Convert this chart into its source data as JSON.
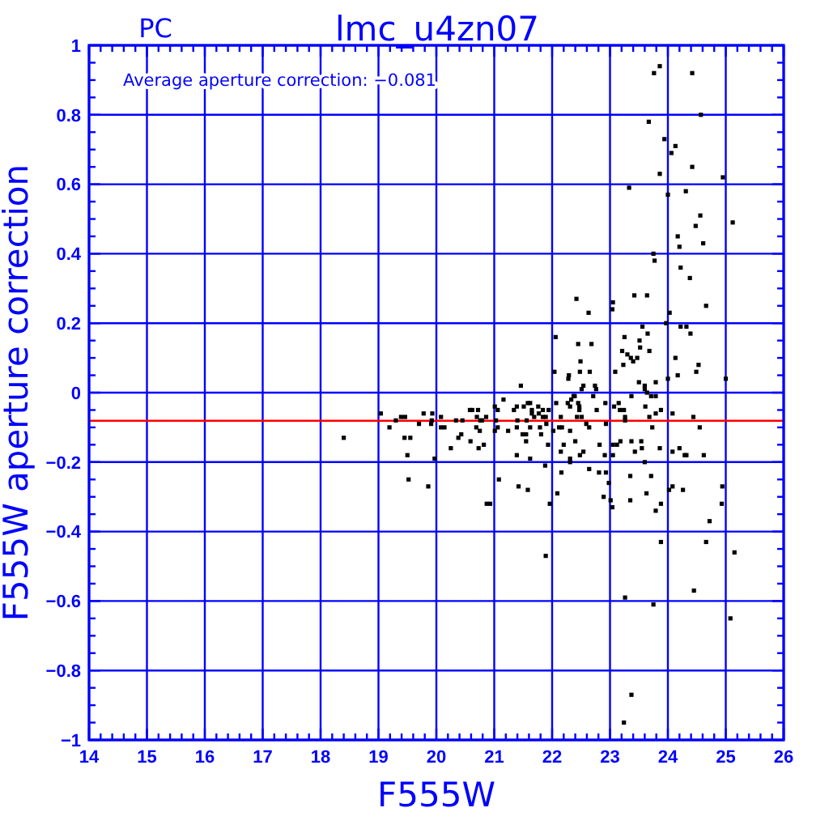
{
  "chart_data": {
    "type": "scatter",
    "title": "lmc_u4zn07",
    "subtitle": "PC",
    "xlabel": "F555W",
    "ylabel": "F555W aperture correction",
    "annotations": [
      "Average aperture correction: −0.081"
    ],
    "xlim": [
      14,
      26
    ],
    "ylim": [
      -1,
      1
    ],
    "xticks": [
      14,
      {
        "value": 14.2,
        "label": null
      },
      {
        "value": 14.4,
        "label": null
      },
      {
        "value": 14.6,
        "label": null
      },
      {
        "value": 14.8,
        "label": null
      },
      15,
      {
        "value": 15.2,
        "label": null
      },
      {
        "value": 15.4,
        "label": null
      },
      {
        "value": 15.6,
        "label": null
      },
      {
        "value": 15.8,
        "label": null
      },
      16,
      {
        "value": 16.2,
        "label": null
      },
      {
        "value": 16.4,
        "label": null
      },
      {
        "value": 16.6,
        "label": null
      },
      {
        "value": 16.8,
        "label": null
      },
      17,
      {
        "value": 17.2,
        "label": null
      },
      {
        "value": 17.4,
        "label": null
      },
      {
        "value": 17.6,
        "label": null
      },
      {
        "value": 17.8,
        "label": null
      },
      18,
      {
        "value": 18.2,
        "label": null
      },
      {
        "value": 18.4,
        "label": null
      },
      {
        "value": 18.6,
        "label": null
      },
      {
        "value": 18.8,
        "label": null
      },
      19,
      {
        "value": 19.2,
        "label": null
      },
      {
        "value": 19.4,
        "label": null
      },
      {
        "value": 19.6,
        "label": null
      },
      {
        "value": 19.8,
        "label": null
      },
      20,
      {
        "value": 20.2,
        "label": null
      },
      {
        "value": 20.4,
        "label": null
      },
      {
        "value": 20.6,
        "label": null
      },
      {
        "value": 20.8,
        "label": null
      },
      21,
      {
        "value": 21.2,
        "label": null
      },
      {
        "value": 21.4,
        "label": null
      },
      {
        "value": 21.6,
        "label": null
      },
      {
        "value": 21.8,
        "label": null
      },
      22,
      {
        "value": 22.2,
        "label": null
      },
      {
        "value": 22.4,
        "label": null
      },
      {
        "value": 22.6,
        "label": null
      },
      {
        "value": 22.8,
        "label": null
      },
      23,
      {
        "value": 23.2,
        "label": null
      },
      {
        "value": 23.4,
        "label": null
      },
      {
        "value": 23.6,
        "label": null
      },
      {
        "value": 23.8,
        "label": null
      },
      24,
      {
        "value": 24.2,
        "label": null
      },
      {
        "value": 24.4,
        "label": null
      },
      {
        "value": 24.6,
        "label": null
      },
      {
        "value": 24.8,
        "label": null
      },
      25,
      {
        "value": 25.2,
        "label": null
      },
      {
        "value": 25.4,
        "label": null
      },
      {
        "value": 25.6,
        "label": null
      },
      {
        "value": 25.8,
        "label": null
      },
      26
    ],
    "yticks": [
      -1,
      {
        "value": -0.95,
        "label": null
      },
      {
        "value": -0.9,
        "label": null
      },
      {
        "value": -0.85,
        "label": null
      },
      -0.8,
      {
        "value": -0.75,
        "label": null
      },
      {
        "value": -0.7,
        "label": null
      },
      {
        "value": -0.65,
        "label": null
      },
      -0.6,
      {
        "value": -0.55,
        "label": null
      },
      {
        "value": -0.5,
        "label": null
      },
      {
        "value": -0.45,
        "label": null
      },
      -0.4,
      {
        "value": -0.35,
        "label": null
      },
      {
        "value": -0.3,
        "label": null
      },
      {
        "value": -0.25,
        "label": null
      },
      -0.2,
      {
        "value": -0.15,
        "label": null
      },
      {
        "value": -0.1,
        "label": null
      },
      {
        "value": -0.05,
        "label": null
      },
      0,
      {
        "value": 0.05,
        "label": null
      },
      {
        "value": 0.1,
        "label": null
      },
      {
        "value": 0.15,
        "label": null
      },
      0.2,
      {
        "value": 0.25,
        "label": null
      },
      {
        "value": 0.3,
        "label": null
      },
      {
        "value": 0.35,
        "label": null
      },
      0.4,
      {
        "value": 0.45,
        "label": null
      },
      {
        "value": 0.5,
        "label": null
      },
      {
        "value": 0.55,
        "label": null
      },
      0.6,
      {
        "value": 0.65,
        "label": null
      },
      {
        "value": 0.7,
        "label": null
      },
      {
        "value": 0.75,
        "label": null
      },
      0.8,
      {
        "value": 0.85,
        "label": null
      },
      {
        "value": 0.9,
        "label": null
      },
      {
        "value": 0.95,
        "label": null
      },
      1
    ],
    "grid": true,
    "marker": "square",
    "color": "#000000",
    "ref_lines": [
      {
        "axis": "y",
        "value": -0.081,
        "color": "#ff0000"
      }
    ],
    "x": [
      18.4,
      19.04,
      19.19,
      19.3,
      19.39,
      19.46,
      19.45,
      19.55,
      19.5,
      19.52,
      19.7,
      19.78,
      19.86,
      19.93,
      19.91,
      19.92,
      19.97,
      20.08,
      20.08,
      20.14,
      20.25,
      20.34,
      20.38,
      20.43,
      20.45,
      20.58,
      20.62,
      20.59,
      20.69,
      20.72,
      20.7,
      20.73,
      20.76,
      20.75,
      20.82,
      20.79,
      20.86,
      20.87,
      20.93,
      21.01,
      21.03,
      21.06,
      21.06,
      21.01,
      21.08,
      21.16,
      21.24,
      21.34,
      21.39,
      21.39,
      21.4,
      21.39,
      21.42,
      21.46,
      21.49,
      21.51,
      21.55,
      21.55,
      21.56,
      21.58,
      21.62,
      21.62,
      21.65,
      21.65,
      21.62,
      21.58,
      21.69,
      21.76,
      21.77,
      21.79,
      21.81,
      21.84,
      21.84,
      21.89,
      21.94,
      21.9,
      21.88,
      21.93,
      21.96,
      22.02,
      22.06,
      22.04,
      22.07,
      22.09,
      22.12,
      22.15,
      22.15,
      22.16,
      22.17,
      22.2,
      21.89,
      22.45,
      22.68,
      22.49,
      22.48,
      22.65,
      22.29,
      22.28,
      22.54,
      22.51,
      22.74,
      22.76,
      22.37,
      22.39,
      22.33,
      22.27,
      22.31,
      22.45,
      22.47,
      22.47,
      22.71,
      22.92,
      22.77,
      22.43,
      22.51,
      22.59,
      22.64,
      22.93,
      22.31,
      22.4,
      22.48,
      22.54,
      22.31,
      22.31,
      22.82,
      22.91,
      23.05,
      23.05,
      22.64,
      22.81,
      22.93,
      22.98,
      22.89,
      23.01,
      23.04,
      23.07,
      23.15,
      23.17,
      23.24,
      23.26,
      23.26,
      23.09,
      23.23,
      23.21,
      23.3,
      23.36,
      23.4,
      23.47,
      23.25,
      23.52,
      23.56,
      23.65,
      23.68,
      23.51,
      23.5,
      23.6,
      23.64,
      23.6,
      23.79,
      23.37,
      23.61,
      23.71,
      23.79,
      23.88,
      23.68,
      23.79,
      24.0,
      24.13,
      24.17,
      24.22,
      24.32,
      24.39,
      24.08,
      24.44,
      24.53,
      24.49,
      24.55,
      25.0,
      23.12,
      23.18,
      23.37,
      23.43,
      23.54,
      23.55,
      23.6,
      23.73,
      23.86,
      24.08,
      24.2,
      24.29,
      24.32,
      24.62,
      23.35,
      23.71,
      23.63,
      23.35,
      23.79,
      23.88,
      24.02,
      24.08,
      24.26,
      24.94,
      24.93,
      24.72,
      23.88,
      24.66,
      25.15,
      23.26,
      23.75,
      24.45,
      25.08,
      23.37,
      23.24,
      23.86,
      23.76,
      24.42,
      24.57,
      23.67,
      23.94,
      24.13,
      24.06,
      24.42,
      23.86,
      24.95,
      23.33,
      24.0,
      24.31,
      24.56,
      24.48,
      25.12,
      24.17,
      24.2,
      24.61,
      23.75,
      23.77,
      24.22,
      24.38,
      22.42,
      22.63,
      23.05,
      23.04,
      23.42,
      23.64,
      24.66,
      24.03,
      23.97
    ],
    "values": [
      -0.13,
      -0.06,
      -0.1,
      -0.08,
      -0.07,
      -0.07,
      -0.13,
      -0.13,
      -0.18,
      -0.25,
      -0.09,
      -0.06,
      -0.27,
      -0.06,
      -0.09,
      -0.08,
      -0.19,
      -0.07,
      -0.1,
      -0.1,
      -0.16,
      -0.08,
      -0.13,
      -0.12,
      -0.08,
      -0.05,
      -0.05,
      -0.14,
      -0.1,
      -0.05,
      -0.07,
      -0.16,
      -0.08,
      -0.11,
      -0.15,
      -0.08,
      -0.07,
      -0.32,
      -0.32,
      -0.04,
      -0.08,
      -0.05,
      -0.1,
      -0.11,
      -0.25,
      -0.02,
      -0.11,
      -0.05,
      -0.04,
      -0.1,
      -0.08,
      -0.18,
      -0.27,
      0.02,
      -0.12,
      -0.04,
      -0.12,
      -0.14,
      -0.08,
      -0.03,
      -0.03,
      -0.1,
      -0.05,
      -0.06,
      -0.19,
      -0.28,
      -0.07,
      -0.04,
      -0.06,
      -0.1,
      -0.12,
      -0.05,
      -0.07,
      -0.07,
      -0.05,
      -0.09,
      -0.21,
      -0.15,
      -0.32,
      -0.11,
      0.16,
      0.06,
      -0.03,
      -0.29,
      -0.1,
      -0.07,
      -0.17,
      -0.23,
      -0.1,
      -0.15,
      -0.47,
      0.14,
      0.14,
      0.09,
      0.06,
      0.06,
      0.05,
      0.04,
      0.02,
      0.01,
      0.02,
      0.01,
      -0.01,
      -0.01,
      -0.02,
      -0.03,
      -0.04,
      -0.03,
      -0.04,
      -0.05,
      -0.01,
      -0.03,
      -0.05,
      -0.07,
      -0.07,
      -0.09,
      -0.1,
      -0.09,
      -0.11,
      -0.14,
      -0.18,
      -0.17,
      -0.19,
      -0.2,
      -0.15,
      -0.18,
      -0.18,
      -0.15,
      -0.22,
      -0.23,
      -0.23,
      -0.26,
      -0.3,
      -0.31,
      -0.33,
      -0.04,
      -0.03,
      -0.05,
      -0.05,
      -0.07,
      -0.08,
      0.06,
      0.08,
      0.12,
      0.11,
      0.1,
      0.09,
      0.1,
      0.16,
      0.13,
      0.19,
      0.17,
      0.12,
      0.15,
      0.03,
      0.02,
      0.0,
      0.01,
      0.03,
      -0.01,
      -0.04,
      -0.01,
      -0.01,
      -0.05,
      -0.07,
      -0.06,
      0.04,
      0.1,
      0.05,
      0.19,
      0.19,
      0.17,
      -0.06,
      -0.07,
      0.08,
      0.06,
      -0.1,
      0.04,
      -0.15,
      -0.14,
      -0.14,
      -0.17,
      -0.14,
      -0.16,
      -0.2,
      -0.1,
      -0.16,
      -0.17,
      -0.16,
      -0.18,
      -0.18,
      -0.18,
      -0.24,
      -0.24,
      -0.29,
      -0.31,
      -0.34,
      -0.32,
      -0.28,
      -0.27,
      -0.28,
      -0.27,
      -0.32,
      -0.37,
      -0.43,
      -0.43,
      -0.46,
      -0.59,
      -0.61,
      -0.57,
      -0.65,
      -0.87,
      -0.95,
      0.94,
      0.92,
      0.92,
      0.8,
      0.78,
      0.73,
      0.71,
      0.69,
      0.65,
      0.63,
      0.62,
      0.59,
      0.57,
      0.58,
      0.51,
      0.48,
      0.49,
      0.45,
      0.42,
      0.43,
      0.4,
      0.38,
      0.36,
      0.33,
      0.27,
      0.23,
      0.26,
      0.24,
      0.28,
      0.28,
      0.25,
      0.23,
      0.2
    ]
  }
}
